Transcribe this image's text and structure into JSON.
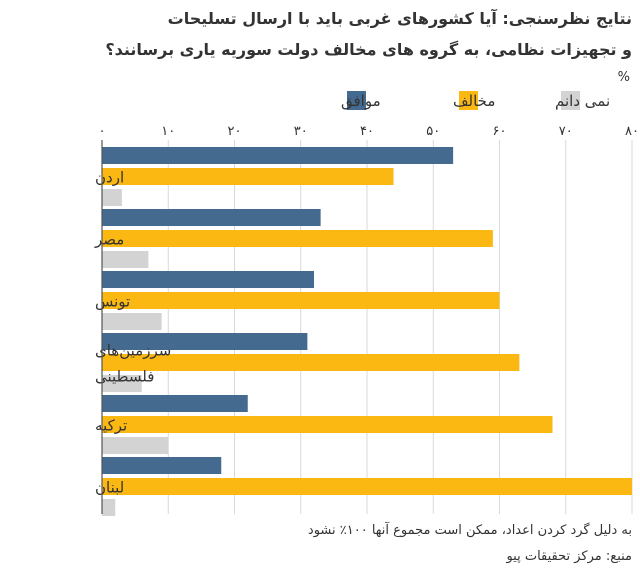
{
  "title": {
    "line1": "نتایج نظرسنجی: آیا کشورهای غربی باید با ارسال تسلیحات",
    "line2": "و تجهیزات نظامی، به گروه های مخالف دولت سوریه یاری برسانند؟"
  },
  "chart_data": {
    "type": "bar",
    "orientation": "horizontal",
    "unit": "%",
    "categories": [
      [
        "اردن"
      ],
      [
        "مصر"
      ],
      [
        "تونس"
      ],
      [
        "سرزمین‌های",
        "فلسطینی"
      ],
      [
        "ترکیه"
      ],
      [
        "لبنان"
      ]
    ],
    "series": [
      {
        "name": "موافق",
        "color": "#456a8f",
        "values": [
          53,
          33,
          32,
          31,
          22,
          18
        ]
      },
      {
        "name": "مخالف",
        "color": "#fbb812",
        "values": [
          44,
          59,
          60,
          63,
          68,
          80
        ]
      },
      {
        "name": "نمی دانم",
        "color": "#d3d3d3",
        "values": [
          3,
          7,
          9,
          6,
          10,
          2
        ]
      }
    ],
    "xlim": [
      0,
      80
    ],
    "ticks": [
      0,
      10,
      20,
      30,
      40,
      50,
      60,
      70,
      80
    ],
    "tick_labels": [
      "۰",
      "۱۰",
      "۲۰",
      "۳۰",
      "۴۰",
      "۵۰",
      "۶۰",
      "۷۰",
      "۸۰"
    ],
    "grid": true,
    "legend_position": "top-right"
  },
  "footer": {
    "note": "به دلیل گرد کردن اعداد، ممکن است مجموع آنها ۱۰۰٪ نشود",
    "source": "منبع: مرکز تحقیقات پیو"
  }
}
